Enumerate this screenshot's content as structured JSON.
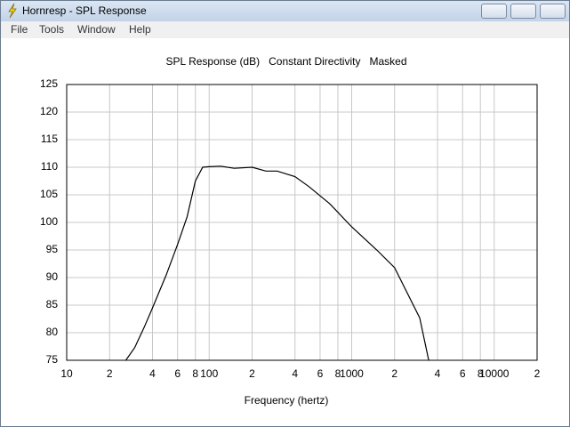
{
  "window": {
    "title": "Hornresp - SPL Response",
    "menu": [
      "File",
      "Tools",
      "Window",
      "Help"
    ]
  },
  "chart_data": {
    "type": "line",
    "title": "SPL Response (dB)   Constant Directivity   Masked",
    "x_label": "Frequency (hertz)",
    "xscale": "log",
    "grid": true,
    "xlim": [
      10,
      20000
    ],
    "ylim": [
      75,
      125
    ],
    "xticks": [
      {
        "value": 10,
        "label": "10"
      },
      {
        "value": 20,
        "label": "2"
      },
      {
        "value": 40,
        "label": "4"
      },
      {
        "value": 60,
        "label": "6"
      },
      {
        "value": 80,
        "label": "8"
      },
      {
        "value": 100,
        "label": "100"
      },
      {
        "value": 200,
        "label": "2"
      },
      {
        "value": 400,
        "label": "4"
      },
      {
        "value": 600,
        "label": "6"
      },
      {
        "value": 800,
        "label": "8"
      },
      {
        "value": 1000,
        "label": "1000"
      },
      {
        "value": 2000,
        "label": "2"
      },
      {
        "value": 4000,
        "label": "4"
      },
      {
        "value": 6000,
        "label": "6"
      },
      {
        "value": 8000,
        "label": "8"
      },
      {
        "value": 10000,
        "label": "10000"
      },
      {
        "value": 20000,
        "label": "2"
      }
    ],
    "yticks": [
      75,
      80,
      85,
      90,
      95,
      100,
      105,
      110,
      115,
      120,
      125
    ],
    "x": [
      26,
      30,
      35,
      40,
      50,
      60,
      70,
      80,
      90,
      100,
      120,
      150,
      200,
      250,
      300,
      400,
      500,
      700,
      1000,
      1500,
      2000,
      3000,
      3470
    ],
    "series": [
      {
        "name": "SPL",
        "color": "#000000",
        "values": [
          75,
          77.3,
          81,
          84.5,
          90.5,
          96,
          101,
          107.5,
          110,
          110.1,
          110.2,
          109.8,
          110,
          109.3,
          109.3,
          108.3,
          106.5,
          103.4,
          99.2,
          95,
          91.8,
          82.7,
          75
        ]
      }
    ]
  }
}
